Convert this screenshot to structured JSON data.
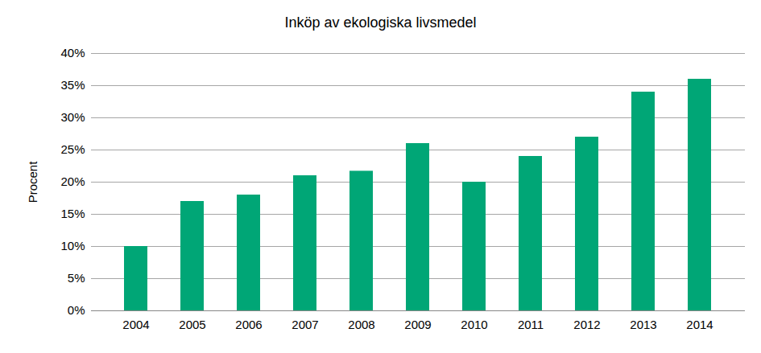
{
  "chart_data": {
    "type": "bar",
    "title": "Inköp av ekologiska livsmedel",
    "y_label": "Procent",
    "categories": [
      "2004",
      "2005",
      "2006",
      "2007",
      "2008",
      "2009",
      "2010",
      "2011",
      "2012",
      "2013",
      "2014"
    ],
    "values": [
      10,
      17,
      18,
      21,
      21.7,
      26,
      20,
      24,
      27,
      34,
      36
    ],
    "color": "#00a676",
    "ylim": [
      0,
      40
    ],
    "yticks": [
      {
        "value": 0,
        "label": "0%"
      },
      {
        "value": 5,
        "label": "5%"
      },
      {
        "value": 10,
        "label": "10%"
      },
      {
        "value": 15,
        "label": "15%"
      },
      {
        "value": 20,
        "label": "20%"
      },
      {
        "value": 25,
        "label": "25%"
      },
      {
        "value": 30,
        "label": "30%"
      },
      {
        "value": 35,
        "label": "35%"
      },
      {
        "value": 40,
        "label": "40%"
      }
    ],
    "grid": true
  }
}
